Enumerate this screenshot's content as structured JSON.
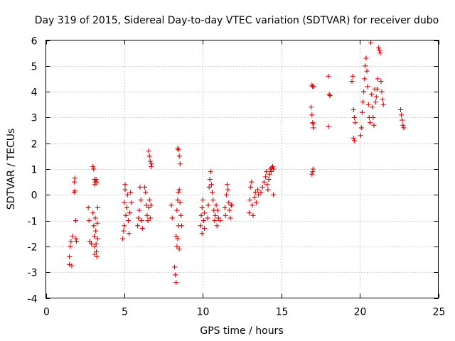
{
  "chart_data": {
    "type": "scatter",
    "title": "Day 319 of 2015, Sidereal Day-to-day VTEC variation (SDTVAR) for receiver dubo",
    "xlabel": "GPS time / hours",
    "ylabel": "SDTVAR / TECUs",
    "xlim": [
      0,
      25
    ],
    "ylim": [
      -4,
      6
    ],
    "xticks": [
      0,
      5,
      10,
      15,
      20,
      25
    ],
    "yticks": [
      -4,
      -3,
      -2,
      -1,
      0,
      1,
      2,
      3,
      4,
      5,
      6
    ],
    "grid": true,
    "marker": "plus",
    "color": "#e00000",
    "series": [
      {
        "name": "SDTVAR",
        "points": [
          [
            1.5,
            -2.7
          ],
          [
            1.5,
            -2.4
          ],
          [
            1.55,
            -2.0
          ],
          [
            1.6,
            -1.8
          ],
          [
            1.65,
            -2.75
          ],
          [
            1.7,
            -1.6
          ],
          [
            1.8,
            0.1
          ],
          [
            1.82,
            0.5
          ],
          [
            1.85,
            0.65
          ],
          [
            1.9,
            -1.0
          ],
          [
            1.92,
            -1.7
          ],
          [
            1.95,
            -1.8
          ],
          [
            1.85,
            0.15
          ],
          [
            2.7,
            -0.5
          ],
          [
            2.75,
            -1.0
          ],
          [
            2.8,
            -1.8
          ],
          [
            2.9,
            -1.9
          ],
          [
            3.0,
            1.1
          ],
          [
            3.05,
            1.0
          ],
          [
            3.1,
            0.6
          ],
          [
            3.12,
            0.4
          ],
          [
            3.15,
            0.5
          ],
          [
            3.2,
            0.6
          ],
          [
            3.25,
            0.5
          ],
          [
            3.0,
            -0.7
          ],
          [
            3.05,
            -1.2
          ],
          [
            3.08,
            -1.6
          ],
          [
            3.1,
            -2.0
          ],
          [
            3.12,
            -2.3
          ],
          [
            3.15,
            -0.9
          ],
          [
            3.18,
            -1.4
          ],
          [
            3.2,
            -1.9
          ],
          [
            3.22,
            -2.2
          ],
          [
            3.25,
            -2.4
          ],
          [
            3.28,
            -1.1
          ],
          [
            3.3,
            -0.5
          ],
          [
            3.3,
            -1.7
          ],
          [
            4.9,
            -1.7
          ],
          [
            4.95,
            -1.4
          ],
          [
            5.0,
            -1.2
          ],
          [
            5.0,
            -0.3
          ],
          [
            5.05,
            0.2
          ],
          [
            5.05,
            0.4
          ],
          [
            5.1,
            -0.8
          ],
          [
            5.15,
            -0.5
          ],
          [
            5.2,
            0.0
          ],
          [
            5.25,
            -1.0
          ],
          [
            5.3,
            -1.5
          ],
          [
            5.35,
            -0.7
          ],
          [
            5.4,
            0.1
          ],
          [
            5.45,
            -0.3
          ],
          [
            5.85,
            -1.2
          ],
          [
            5.9,
            -0.9
          ],
          [
            5.95,
            -0.6
          ],
          [
            6.0,
            0.3
          ],
          [
            6.05,
            -0.2
          ],
          [
            6.1,
            -1.0
          ],
          [
            6.15,
            -1.3
          ],
          [
            6.3,
            0.3
          ],
          [
            6.35,
            0.1
          ],
          [
            6.4,
            -0.4
          ],
          [
            6.45,
            -0.8
          ],
          [
            6.5,
            -1.0
          ],
          [
            6.55,
            -0.5
          ],
          [
            6.6,
            -0.2
          ],
          [
            6.65,
            -0.9
          ],
          [
            6.7,
            -0.4
          ],
          [
            6.55,
            1.7
          ],
          [
            6.6,
            1.5
          ],
          [
            6.65,
            1.3
          ],
          [
            6.7,
            1.1
          ],
          [
            6.75,
            1.2
          ],
          [
            8.0,
            -0.4
          ],
          [
            8.05,
            -0.9
          ],
          [
            8.2,
            -2.8
          ],
          [
            8.25,
            -3.1
          ],
          [
            8.3,
            -3.4
          ],
          [
            8.35,
            -2.0
          ],
          [
            8.4,
            -1.7
          ],
          [
            8.45,
            -1.2
          ],
          [
            8.35,
            -0.6
          ],
          [
            8.4,
            -0.2
          ],
          [
            8.45,
            0.1
          ],
          [
            8.5,
            0.2
          ],
          [
            8.55,
            -0.3
          ],
          [
            8.6,
            -0.8
          ],
          [
            8.65,
            -1.2
          ],
          [
            8.3,
            -1.6
          ],
          [
            8.5,
            -2.1
          ],
          [
            8.4,
            1.8
          ],
          [
            8.45,
            1.75
          ],
          [
            8.5,
            1.5
          ],
          [
            8.55,
            1.2
          ],
          [
            9.85,
            -1.2
          ],
          [
            9.9,
            -0.8
          ],
          [
            9.95,
            -0.5
          ],
          [
            10.0,
            -0.2
          ],
          [
            10.05,
            -1.0
          ],
          [
            10.1,
            -0.7
          ],
          [
            9.95,
            -1.5
          ],
          [
            10.1,
            -1.3
          ],
          [
            10.3,
            -0.9
          ],
          [
            10.35,
            -0.4
          ],
          [
            10.4,
            0.3
          ],
          [
            10.45,
            0.6
          ],
          [
            10.5,
            0.9
          ],
          [
            10.55,
            0.4
          ],
          [
            10.6,
            0.1
          ],
          [
            10.65,
            -0.2
          ],
          [
            10.7,
            -0.6
          ],
          [
            10.75,
            -1.0
          ],
          [
            10.8,
            -0.8
          ],
          [
            10.85,
            -0.4
          ],
          [
            10.9,
            -1.2
          ],
          [
            10.95,
            -0.6
          ],
          [
            11.0,
            -0.9
          ],
          [
            11.1,
            -1.0
          ],
          [
            11.4,
            -0.5
          ],
          [
            11.45,
            -0.8
          ],
          [
            11.5,
            0.0
          ],
          [
            11.55,
            0.4
          ],
          [
            11.6,
            0.2
          ],
          [
            11.65,
            -0.3
          ],
          [
            11.7,
            -0.6
          ],
          [
            11.75,
            -0.9
          ],
          [
            11.8,
            -0.4
          ],
          [
            11.85,
            -0.4
          ],
          [
            12.95,
            -0.7
          ],
          [
            13.0,
            -0.2
          ],
          [
            13.05,
            0.3
          ],
          [
            13.1,
            0.5
          ],
          [
            13.15,
            -0.4
          ],
          [
            13.2,
            -0.8
          ],
          [
            13.3,
            -0.1
          ],
          [
            13.35,
            0.1
          ],
          [
            13.4,
            -0.3
          ],
          [
            13.5,
            0.2
          ],
          [
            13.55,
            0.0
          ],
          [
            13.7,
            0.1
          ],
          [
            13.8,
            0.3
          ],
          [
            13.9,
            0.5
          ],
          [
            14.0,
            0.7
          ],
          [
            14.05,
            0.9
          ],
          [
            14.1,
            0.4
          ],
          [
            14.15,
            0.2
          ],
          [
            14.2,
            0.6
          ],
          [
            14.25,
            0.8
          ],
          [
            14.3,
            1.0
          ],
          [
            14.35,
            0.9
          ],
          [
            14.4,
            1.05
          ],
          [
            14.45,
            1.1
          ],
          [
            14.5,
            1.0
          ],
          [
            14.5,
            0.0
          ],
          [
            16.9,
            3.4
          ],
          [
            16.95,
            3.1
          ],
          [
            17.0,
            2.8
          ],
          [
            17.02,
            2.75
          ],
          [
            17.05,
            2.6
          ],
          [
            16.95,
            4.25
          ],
          [
            17.0,
            4.2
          ],
          [
            17.05,
            4.2
          ],
          [
            16.95,
            0.8
          ],
          [
            17.0,
            0.9
          ],
          [
            17.02,
            1.0
          ],
          [
            18.0,
            4.6
          ],
          [
            18.05,
            3.9
          ],
          [
            18.1,
            3.85
          ],
          [
            18.0,
            2.65
          ],
          [
            19.5,
            4.4
          ],
          [
            19.55,
            4.6
          ],
          [
            19.6,
            3.3
          ],
          [
            19.65,
            3.0
          ],
          [
            19.7,
            2.8
          ],
          [
            19.6,
            2.2
          ],
          [
            19.65,
            2.1
          ],
          [
            20.05,
            2.3
          ],
          [
            20.1,
            2.6
          ],
          [
            20.15,
            3.2
          ],
          [
            20.2,
            3.6
          ],
          [
            20.25,
            4.0
          ],
          [
            20.3,
            4.5
          ],
          [
            20.35,
            5.0
          ],
          [
            20.4,
            5.3
          ],
          [
            20.45,
            4.8
          ],
          [
            20.5,
            4.2
          ],
          [
            20.55,
            3.5
          ],
          [
            20.6,
            3.0
          ],
          [
            20.65,
            2.8
          ],
          [
            20.7,
            5.9
          ],
          [
            20.75,
            3.9
          ],
          [
            20.8,
            3.4
          ],
          [
            20.85,
            3.0
          ],
          [
            20.9,
            2.7
          ],
          [
            20.95,
            4.1
          ],
          [
            21.0,
            3.6
          ],
          [
            21.05,
            3.8
          ],
          [
            21.1,
            4.1
          ],
          [
            21.15,
            4.5
          ],
          [
            21.2,
            5.7
          ],
          [
            21.25,
            5.6
          ],
          [
            21.3,
            5.5
          ],
          [
            21.35,
            4.4
          ],
          [
            21.4,
            4.0
          ],
          [
            21.45,
            3.7
          ],
          [
            21.5,
            3.5
          ],
          [
            22.6,
            3.3
          ],
          [
            22.65,
            3.1
          ],
          [
            22.7,
            2.9
          ],
          [
            22.75,
            2.7
          ],
          [
            22.8,
            2.6
          ]
        ]
      }
    ]
  }
}
